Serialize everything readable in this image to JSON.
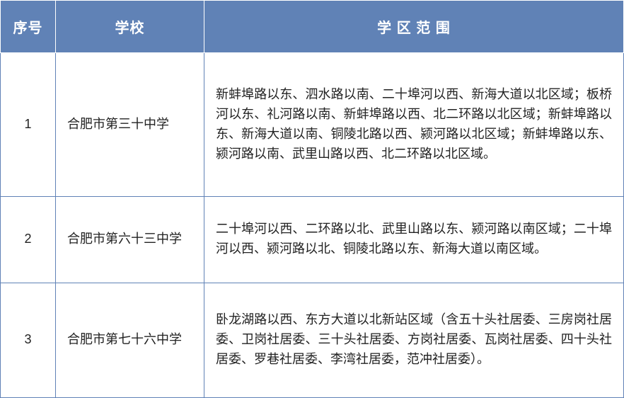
{
  "table": {
    "header_bg": "#6082b6",
    "header_fg": "#ffffff",
    "border_color": "#6082b6",
    "font_size_header": 20,
    "font_size_cell": 18,
    "columns": [
      {
        "key": "idx",
        "label": "序号"
      },
      {
        "key": "school",
        "label": "学校"
      },
      {
        "key": "range",
        "label": "学 区 范 围"
      }
    ],
    "rows": [
      {
        "idx": "1",
        "school": "合肥市第三十中学",
        "range": "新蚌埠路以东、泗水路以南、二十埠河以西、新海大道以北区域；板桥河以东、礼河路以南、新蚌埠路以西、北二环路以北区域；新蚌埠路以东、新海大道以南、铜陵北路以西、颍河路以北区域；新蚌埠路以东、颍河路以南、武里山路以西、北二环路以北区域。"
      },
      {
        "idx": "2",
        "school": "合肥市第六十三中学",
        "range": "二十埠河以西、二环路以北、武里山路以东、颍河路以南区域；二十埠河以西、颍河路以北、铜陵北路以东、新海大道以南区域。"
      },
      {
        "idx": "3",
        "school": "合肥市第七十六中学",
        "range": "卧龙湖路以西、东方大道以北新站区域（含五十头社居委、三房岗社居委、卫岗社居委、三十头社居委、方岗社居委、瓦岗社居委、四十头社居委、罗巷社居委、李湾社居委，范冲社居委）。"
      }
    ]
  }
}
